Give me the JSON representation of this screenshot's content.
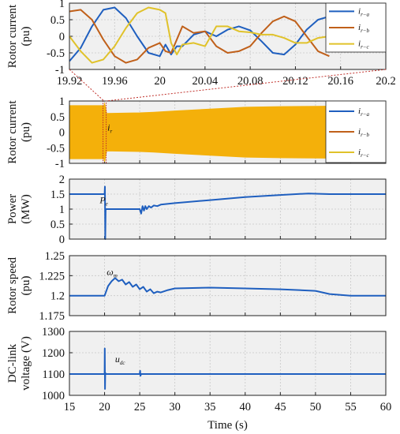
{
  "xlabel": "Time (s)",
  "colors": {
    "a": "#1f5fbf",
    "b": "#c0601a",
    "c": "#e0c22a",
    "band": "#f4b00a",
    "zoom_marker": "#c0302a",
    "grid_bg": "#f0f0f0"
  },
  "chart_data": [
    {
      "type": "line",
      "id": "zoom",
      "ylabel": [
        "Rotor current",
        "(pu)"
      ],
      "xlim": [
        19.92,
        20.2
      ],
      "ylim": [
        -1,
        1
      ],
      "xticks": [
        "19.92",
        "19.96",
        "20",
        "20.04",
        "20.08",
        "20.12",
        "20.16",
        "20.2"
      ],
      "yticks": [
        "1",
        "0.5",
        "0",
        "-0.5",
        "-1"
      ],
      "legend": {
        "placement": "top-right",
        "entries": [
          {
            "base": "i",
            "sub": "r−a"
          },
          {
            "base": "i",
            "sub": "r−b"
          },
          {
            "base": "i",
            "sub": "r−c"
          }
        ]
      },
      "series": [
        {
          "name": "ir-a",
          "x": [
            19.92,
            19.93,
            19.94,
            19.95,
            19.96,
            19.97,
            19.98,
            19.99,
            20.0,
            20.005,
            20.01,
            20.015,
            20.02,
            20.03,
            20.04,
            20.05,
            20.06,
            20.07,
            20.08,
            20.09,
            20.1,
            20.11,
            20.12,
            20.13,
            20.14,
            20.15
          ],
          "values": [
            -0.75,
            -0.35,
            0.3,
            0.8,
            0.87,
            0.55,
            0.0,
            -0.5,
            -0.6,
            -0.25,
            -0.55,
            -0.3,
            -0.3,
            0.05,
            0.15,
            0.0,
            0.2,
            0.3,
            0.18,
            -0.15,
            -0.5,
            -0.55,
            -0.25,
            0.2,
            0.5,
            0.6
          ]
        },
        {
          "name": "ir-b",
          "x": [
            19.92,
            19.93,
            19.94,
            19.95,
            19.96,
            19.97,
            19.98,
            19.99,
            20.0,
            20.005,
            20.01,
            20.015,
            20.02,
            20.03,
            20.04,
            20.05,
            20.06,
            20.07,
            20.08,
            20.09,
            20.1,
            20.11,
            20.12,
            20.13,
            20.14,
            20.15
          ],
          "values": [
            0.75,
            0.8,
            0.5,
            -0.1,
            -0.6,
            -0.8,
            -0.7,
            -0.35,
            -0.2,
            -0.45,
            -0.5,
            -0.1,
            0.3,
            0.1,
            0.15,
            -0.3,
            -0.5,
            -0.45,
            -0.3,
            0.1,
            0.45,
            0.6,
            0.45,
            0.0,
            -0.45,
            -0.6
          ]
        },
        {
          "name": "ir-c",
          "x": [
            19.92,
            19.93,
            19.94,
            19.95,
            19.96,
            19.97,
            19.98,
            19.99,
            20.0,
            20.005,
            20.01,
            20.015,
            20.02,
            20.03,
            20.04,
            20.05,
            20.06,
            20.07,
            20.08,
            20.09,
            20.1,
            20.11,
            20.12,
            20.13,
            20.14,
            20.15
          ],
          "values": [
            0.0,
            -0.45,
            -0.8,
            -0.7,
            -0.3,
            0.25,
            0.7,
            0.87,
            0.8,
            0.7,
            -0.2,
            -0.55,
            -0.25,
            -0.2,
            -0.3,
            0.3,
            0.3,
            0.15,
            0.12,
            0.05,
            0.05,
            -0.05,
            -0.2,
            -0.2,
            -0.05,
            0.0
          ]
        }
      ]
    },
    {
      "type": "area",
      "id": "ir",
      "ylabel": [
        "Rotor current",
        "(pu)"
      ],
      "xlim": [
        15,
        60
      ],
      "ylim": [
        -1,
        1
      ],
      "yticks": [
        "1",
        "0.5",
        "0",
        "-0.5",
        "-1"
      ],
      "annotation": {
        "base": "i",
        "sub": "r"
      },
      "legend": {
        "placement": "top-right",
        "entries": [
          {
            "base": "i",
            "sub": "r−a"
          },
          {
            "base": "i",
            "sub": "r−b"
          },
          {
            "base": "i",
            "sub": "r−c"
          }
        ]
      },
      "envelope": {
        "x": [
          15,
          19.9,
          20,
          20.3,
          25,
          27,
          30,
          35,
          40,
          45,
          50,
          55,
          60
        ],
        "upper": [
          0.85,
          0.85,
          0.92,
          0.6,
          0.62,
          0.64,
          0.68,
          0.74,
          0.8,
          0.82,
          0.83,
          0.84,
          0.85
        ],
        "lower": [
          -0.85,
          -0.85,
          -0.95,
          -0.6,
          -0.62,
          -0.64,
          -0.68,
          -0.74,
          -0.8,
          -0.82,
          -0.83,
          -0.84,
          -0.85
        ]
      }
    },
    {
      "type": "line",
      "id": "power",
      "ylabel": [
        "Power",
        "(MW)"
      ],
      "xlim": [
        15,
        60
      ],
      "ylim": [
        0,
        2
      ],
      "yticks": [
        "2",
        "1.5",
        "1",
        "0.5",
        "0"
      ],
      "annotation": {
        "base": "P",
        "sub": "e"
      },
      "series": [
        {
          "name": "Pe",
          "x": [
            15,
            20,
            20.05,
            20.1,
            20.15,
            20.3,
            25,
            25.2,
            25.4,
            25.6,
            25.8,
            26,
            26.3,
            26.6,
            27,
            27.5,
            28,
            30,
            35,
            40,
            45,
            49,
            52,
            55,
            60
          ],
          "values": [
            1.5,
            1.5,
            1.75,
            0.0,
            1.0,
            1.0,
            1.0,
            0.85,
            1.1,
            0.95,
            1.1,
            1.0,
            1.1,
            1.05,
            1.12,
            1.1,
            1.15,
            1.2,
            1.3,
            1.4,
            1.47,
            1.52,
            1.5,
            1.5,
            1.5
          ]
        }
      ]
    },
    {
      "type": "line",
      "id": "speed",
      "ylabel": [
        "Rotor speed",
        "(pu)"
      ],
      "xlim": [
        15,
        60
      ],
      "ylim": [
        1.175,
        1.25
      ],
      "yticks": [
        "1.25",
        "1.225",
        "1.2",
        "1.175"
      ],
      "annotation": {
        "base": "ω",
        "sub": "m"
      },
      "series": [
        {
          "name": "wm",
          "x": [
            15,
            20,
            20.5,
            21,
            21.5,
            22,
            22.5,
            23,
            23.5,
            24,
            24.5,
            25,
            25.5,
            26,
            26.5,
            27,
            27.5,
            28,
            29,
            30,
            35,
            40,
            45,
            50,
            52,
            55,
            60
          ],
          "values": [
            1.2,
            1.2,
            1.212,
            1.218,
            1.222,
            1.218,
            1.22,
            1.214,
            1.217,
            1.211,
            1.214,
            1.208,
            1.211,
            1.205,
            1.208,
            1.203,
            1.205,
            1.204,
            1.207,
            1.209,
            1.21,
            1.209,
            1.208,
            1.206,
            1.202,
            1.2,
            1.2
          ]
        }
      ]
    },
    {
      "type": "line",
      "id": "udc",
      "ylabel": [
        "DC-link",
        "voltage (V)"
      ],
      "xlim": [
        15,
        60
      ],
      "ylim": [
        1000,
        1300
      ],
      "yticks": [
        "1300",
        "1200",
        "1100",
        "1000"
      ],
      "xticks": [
        "15",
        "20",
        "25",
        "30",
        "35",
        "40",
        "45",
        "50",
        "55",
        "60"
      ],
      "annotation": {
        "base": "u",
        "sub": "dc"
      },
      "series": [
        {
          "name": "udc",
          "x": [
            15,
            20,
            20.03,
            20.06,
            20.1,
            20.2,
            25,
            25.05,
            25.1,
            25.2,
            26,
            60
          ],
          "values": [
            1100,
            1100,
            1220,
            1030,
            1105,
            1100,
            1100,
            1115,
            1092,
            1100,
            1100,
            1100
          ]
        }
      ]
    }
  ]
}
